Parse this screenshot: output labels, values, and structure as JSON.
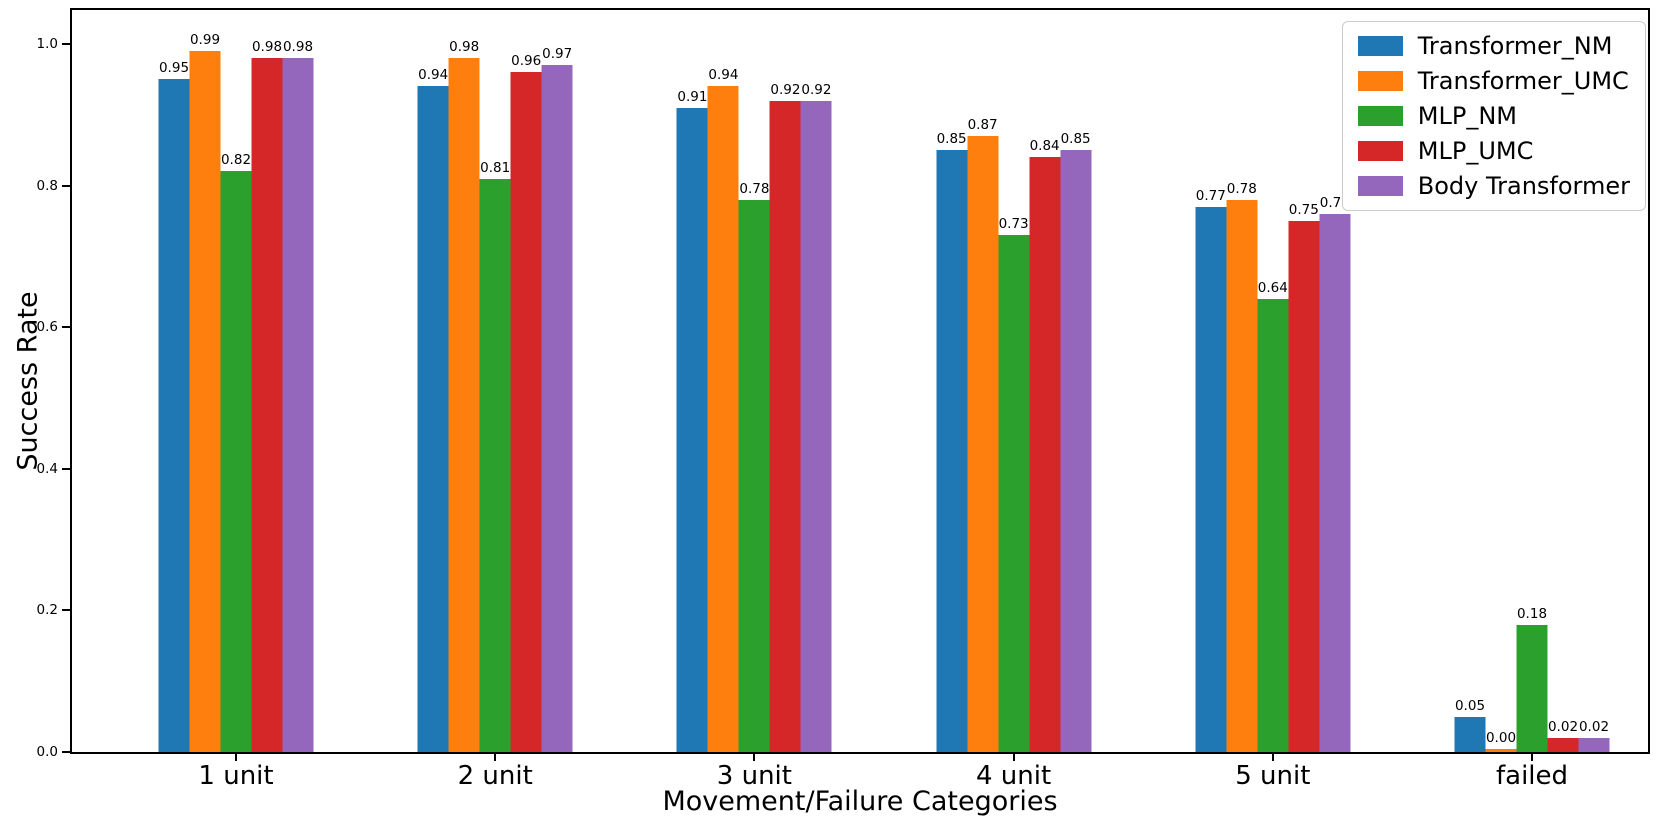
{
  "chart_data": {
    "type": "bar",
    "title": "",
    "xlabel": "Movement/Failure Categories",
    "ylabel": "Success Rate",
    "categories": [
      "1 unit",
      "2 unit",
      "3 unit",
      "4 unit",
      "5 unit",
      "failed"
    ],
    "series": [
      {
        "name": "Transformer_NM",
        "color": "#1f77b4",
        "values": [
          0.95,
          0.94,
          0.91,
          0.85,
          0.77,
          0.05
        ]
      },
      {
        "name": "Transformer_UMC",
        "color": "#ff7f0e",
        "values": [
          0.99,
          0.98,
          0.94,
          0.87,
          0.78,
          0.0
        ]
      },
      {
        "name": "MLP_NM",
        "color": "#2ca02c",
        "values": [
          0.82,
          0.81,
          0.78,
          0.73,
          0.64,
          0.18
        ]
      },
      {
        "name": "MLP_UMC",
        "color": "#d62728",
        "values": [
          0.98,
          0.96,
          0.92,
          0.84,
          0.75,
          0.02
        ]
      },
      {
        "name": "Body Transformer",
        "color": "#9467bd",
        "values": [
          0.98,
          0.97,
          0.92,
          0.85,
          0.76,
          0.02
        ]
      }
    ],
    "bar_value_labels": true,
    "yticks": [
      0.0,
      0.2,
      0.4,
      0.6,
      0.8,
      1.0
    ],
    "ylim": [
      0,
      1.048
    ],
    "grid": false,
    "legend_position": "upper right",
    "axis_color": "#000000",
    "background_color": "#ffffff"
  }
}
